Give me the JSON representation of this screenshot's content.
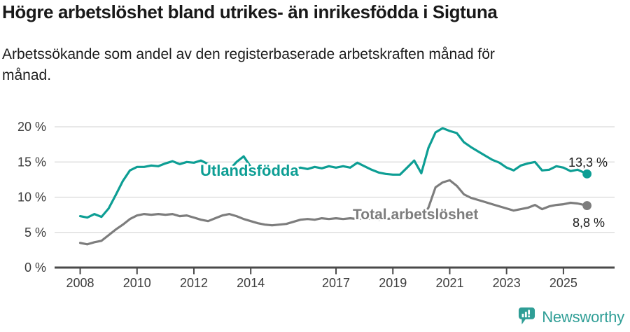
{
  "header": {
    "title": "Högre arbetslöshet bland utrikes- än inrikesfödda i Sigtuna",
    "subtitle_line1": "Arbetssökande som andel av den registerbaserade arbetskraften månad för",
    "subtitle_line2": "månad."
  },
  "footer": {
    "brand": "Newsworthy",
    "brand_color": "#2f9e96",
    "logo_icon": "speech-bubble-bar-chart-icon"
  },
  "colors": {
    "utlandsfodda": "#0d9e94",
    "total": "#7d7d7d",
    "gridline": "#d9d9d9",
    "axis": "#4a4a4a",
    "tick_text": "#3d3d3d",
    "end_label_text": "#1a1a1a"
  },
  "chart_data": {
    "type": "line",
    "x_unit": "decimal_year",
    "xlim": [
      2007.1,
      2026.8
    ],
    "ylim": [
      0,
      20
    ],
    "grid": "horizontal",
    "y_ticks": [
      {
        "value": 20,
        "label": "20 %"
      },
      {
        "value": 15,
        "label": "15 %"
      },
      {
        "value": 10,
        "label": "10 %"
      },
      {
        "value": 5,
        "label": "5 %"
      },
      {
        "value": 0,
        "label": "0 %"
      }
    ],
    "x_ticks": [
      {
        "year": 2008,
        "label": "2008"
      },
      {
        "year": 2010,
        "label": "2010"
      },
      {
        "year": 2012,
        "label": "2012"
      },
      {
        "year": 2014,
        "label": "2014"
      },
      {
        "year": 2017,
        "label": "2017"
      },
      {
        "year": 2019,
        "label": "2019"
      },
      {
        "year": 2021,
        "label": "2021"
      },
      {
        "year": 2023,
        "label": "2023"
      },
      {
        "year": 2025,
        "label": "2025"
      }
    ],
    "x": [
      2008.0,
      2008.25,
      2008.5,
      2008.75,
      2009.0,
      2009.25,
      2009.5,
      2009.75,
      2010.0,
      2010.25,
      2010.5,
      2010.75,
      2011.0,
      2011.25,
      2011.5,
      2011.75,
      2012.0,
      2012.25,
      2012.5,
      2012.75,
      2013.0,
      2013.25,
      2013.5,
      2013.75,
      2014.0,
      2014.25,
      2014.5,
      2014.75,
      2015.0,
      2015.25,
      2015.5,
      2015.75,
      2016.0,
      2016.25,
      2016.5,
      2016.75,
      2017.0,
      2017.25,
      2017.5,
      2017.75,
      2018.0,
      2018.25,
      2018.5,
      2018.75,
      2019.0,
      2019.25,
      2019.5,
      2019.75,
      2020.0,
      2020.25,
      2020.5,
      2020.75,
      2021.0,
      2021.25,
      2021.5,
      2021.75,
      2022.0,
      2022.25,
      2022.5,
      2022.75,
      2023.0,
      2023.25,
      2023.5,
      2023.75,
      2024.0,
      2024.25,
      2024.5,
      2024.75,
      2025.0,
      2025.25,
      2025.5,
      2025.83
    ],
    "series": [
      {
        "name": "Utlandsfödda",
        "color": "#0d9e94",
        "end_label": "13,3 %",
        "end_value": 13.3,
        "values": [
          7.3,
          7.1,
          7.6,
          7.2,
          8.4,
          10.3,
          12.3,
          13.8,
          14.3,
          14.3,
          14.5,
          14.4,
          14.8,
          15.1,
          14.7,
          15.0,
          14.9,
          15.2,
          14.7,
          13.6,
          13.3,
          13.9,
          15.0,
          15.8,
          14.3,
          13.6,
          13.3,
          13.4,
          13.2,
          13.4,
          13.9,
          14.2,
          14.0,
          14.3,
          14.1,
          14.4,
          14.2,
          14.4,
          14.2,
          14.9,
          14.4,
          13.9,
          13.5,
          13.3,
          13.2,
          13.2,
          14.2,
          15.2,
          13.4,
          17.0,
          19.2,
          19.8,
          19.4,
          19.1,
          17.8,
          17.1,
          16.5,
          15.9,
          15.3,
          14.9,
          14.2,
          13.8,
          14.5,
          14.8,
          15.0,
          13.8,
          13.9,
          14.4,
          14.2,
          13.7,
          13.9,
          13.3
        ]
      },
      {
        "name": "Total arbetslöshet",
        "color": "#7d7d7d",
        "end_label": "8,8 %",
        "end_value": 8.8,
        "values": [
          3.5,
          3.3,
          3.6,
          3.8,
          4.6,
          5.4,
          6.1,
          6.9,
          7.4,
          7.6,
          7.5,
          7.6,
          7.5,
          7.6,
          7.3,
          7.4,
          7.1,
          6.8,
          6.6,
          7.0,
          7.4,
          7.6,
          7.3,
          6.9,
          6.6,
          6.3,
          6.1,
          6.0,
          6.1,
          6.2,
          6.5,
          6.8,
          6.9,
          6.8,
          7.0,
          6.9,
          7.0,
          6.9,
          7.0,
          6.9,
          7.0,
          6.9,
          6.8,
          6.9,
          7.0,
          7.0,
          7.1,
          7.1,
          7.2,
          8.5,
          11.4,
          12.1,
          12.4,
          11.6,
          10.4,
          9.9,
          9.6,
          9.3,
          9.0,
          8.7,
          8.4,
          8.1,
          8.3,
          8.5,
          8.9,
          8.3,
          8.7,
          8.9,
          9.0,
          9.2,
          9.1,
          8.8
        ]
      }
    ]
  }
}
